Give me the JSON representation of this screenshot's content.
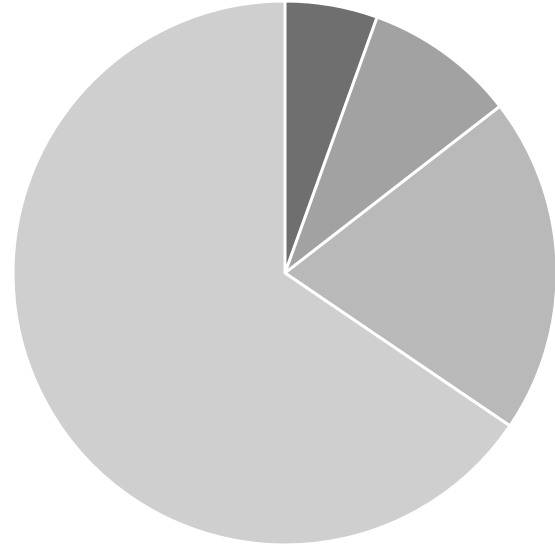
{
  "chart_data": {
    "type": "pie",
    "title": "",
    "start_angle": "top",
    "direction": "clockwise",
    "slices": [
      {
        "value": 5.5,
        "color": "#6f6f6f"
      },
      {
        "value": 9.0,
        "color": "#a2a2a2"
      },
      {
        "value": 20.0,
        "color": "#b9b9b9"
      },
      {
        "value": 65.5,
        "color": "#cfcfcf"
      }
    ]
  }
}
